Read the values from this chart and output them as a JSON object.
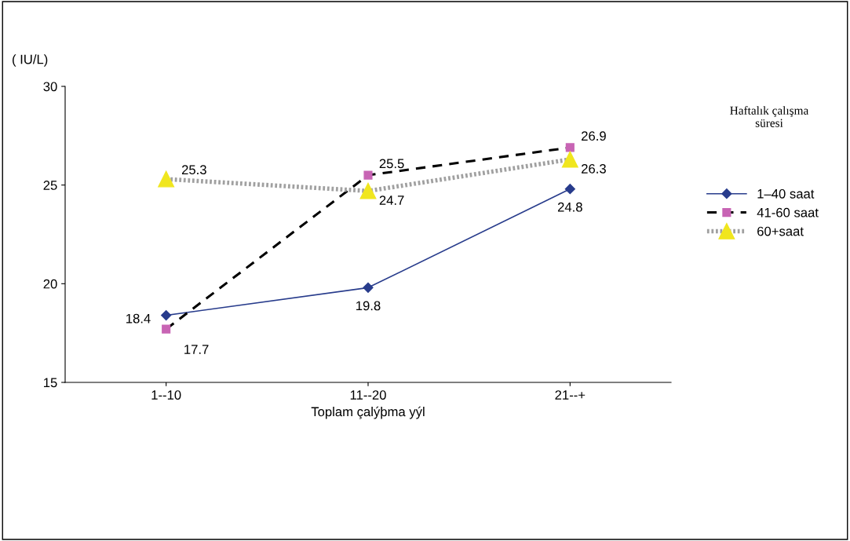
{
  "chart_data": {
    "type": "line",
    "ylabel": "( IU/L)",
    "xlabel": "Toplam çalýþma yýl",
    "legend_title": "Haftalık çalışma\nsüresi",
    "categories": [
      "1--10",
      "11--20",
      "21--+"
    ],
    "series": [
      {
        "name": "1–40 saat",
        "color": "#283c8c",
        "values": [
          18.4,
          19.8,
          24.8
        ],
        "marker": "diamond",
        "line_style": "solid"
      },
      {
        "name": "41-60 saat",
        "color": "#c864b4",
        "values": [
          17.7,
          25.5,
          26.9
        ],
        "marker": "square",
        "line_style": "dashed"
      },
      {
        "name": "60+saat",
        "color": "#f0e61e",
        "values": [
          25.3,
          24.7,
          26.3
        ],
        "marker": "triangle",
        "line_style": "dotted"
      }
    ],
    "ylim": [
      15,
      30
    ],
    "yticks": [
      15,
      20,
      25,
      30
    ],
    "grid": false,
    "legend": "right",
    "data_labels": true
  }
}
